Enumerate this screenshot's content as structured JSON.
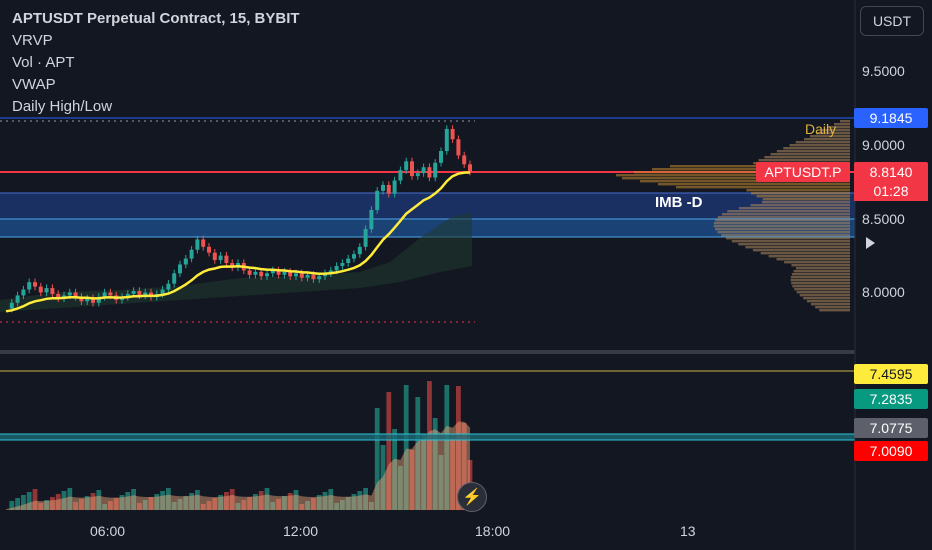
{
  "legend": {
    "title": "APTUSDT Perpetual Contract, 15, BYBIT",
    "indicators": [
      "VRVP",
      "Vol · APT",
      "VWAP",
      "Daily High/Low"
    ]
  },
  "currency_button": "USDT",
  "price_axis": {
    "labels": [
      "9.5000",
      "9.0000",
      "8.5000",
      "8.0000"
    ]
  },
  "tags": {
    "daily_high": "9.1845",
    "last_price": "8.8140",
    "symbol": "APTUSDT.P",
    "countdown": "01:28",
    "vol1": "7.4595",
    "vol2": "7.2835",
    "vol3": "7.0775",
    "vol4": "7.0090"
  },
  "time_axis": [
    "06:00",
    "12:00",
    "18:00",
    "13"
  ],
  "annotations": {
    "imbalance": "IMB -D",
    "daily": "Daily"
  },
  "colors": {
    "background": "#131722",
    "up": "#26a69a",
    "down": "#ef5350",
    "vwap": "#ffeb3b",
    "tag_blue": "#2962ff",
    "tag_red": "#f23645",
    "tag_yellow": "#ffeb3b",
    "tag_green": "#089981",
    "tag_grey": "#5d606b",
    "tag_red2": "#ff0000"
  },
  "icons": {
    "replay": "lightning-icon",
    "scroll": "play-arrow-icon"
  }
}
